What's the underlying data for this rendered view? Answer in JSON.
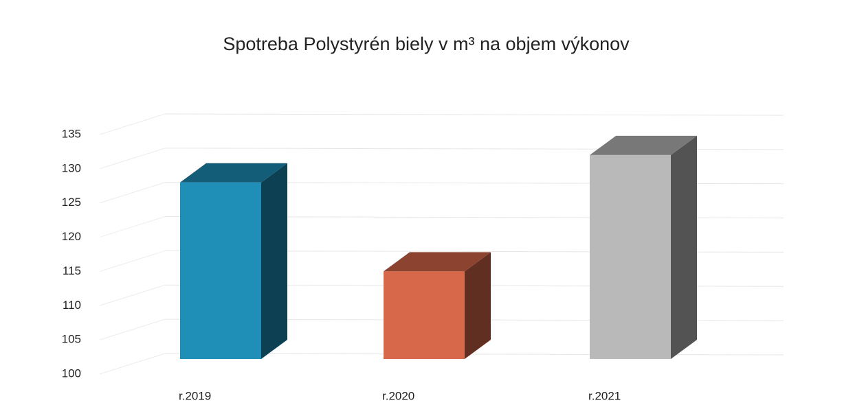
{
  "chart_data": {
    "type": "bar3d",
    "title": "Spotreba Polystyrén biely v m³ na objem výkonov",
    "categories": [
      "r.2019",
      "r.2020",
      "r.2021"
    ],
    "values": [
      128,
      115,
      132
    ],
    "colors": [
      "#1f8fb8",
      "#d8684a",
      "#b9b9b9"
    ],
    "ylim": [
      100,
      135
    ],
    "yticks": [
      100,
      105,
      110,
      115,
      120,
      125,
      130,
      135
    ],
    "grid": true
  }
}
